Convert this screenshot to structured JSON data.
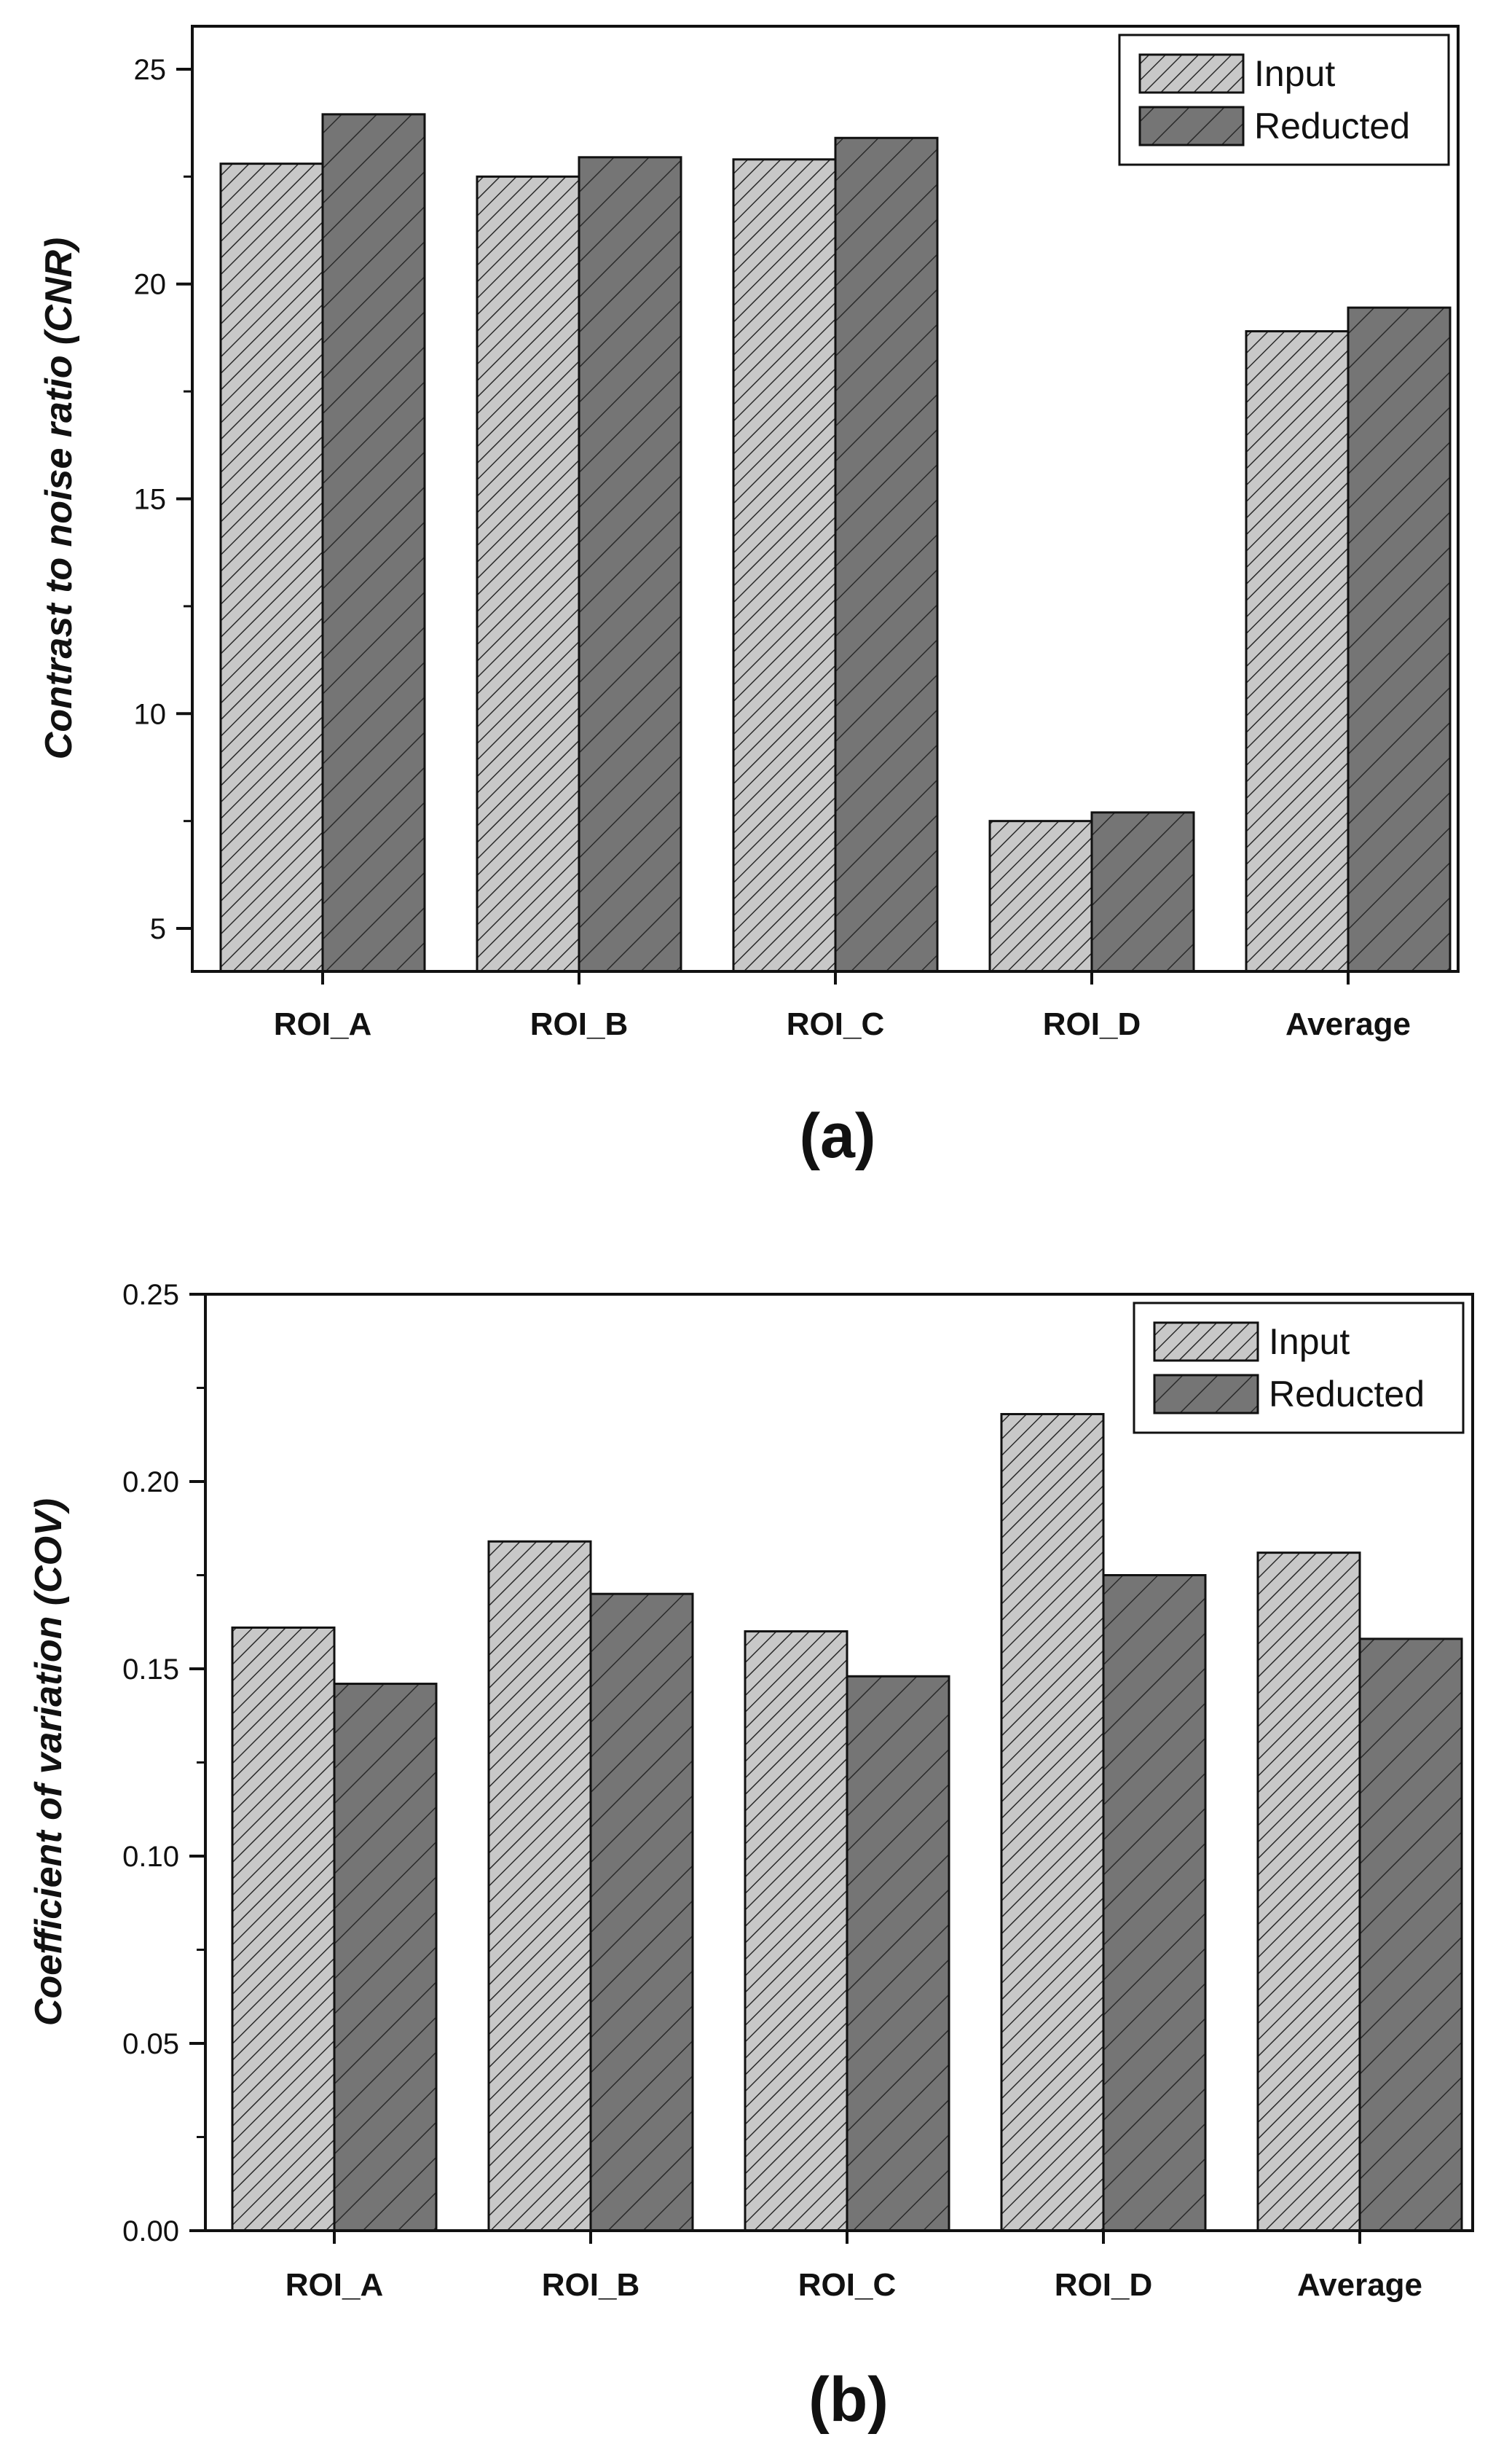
{
  "colors": {
    "input_fill": "#c8c8c8",
    "reducted_fill": "#757575",
    "hatch": "#2a2a2a",
    "axis": "#111111"
  },
  "chart_data": [
    {
      "type": "bar",
      "panel_label": "(a)",
      "title": "",
      "xlabel": "",
      "ylabel": "Contrast to noise ratio (CNR)",
      "categories": [
        "ROI_A",
        "ROI_B",
        "ROI_C",
        "ROI_D",
        "Average"
      ],
      "series": [
        {
          "name": "Input",
          "values": [
            22.8,
            22.5,
            22.9,
            7.5,
            18.9
          ]
        },
        {
          "name": "Reducted",
          "values": [
            23.95,
            22.95,
            23.4,
            7.7,
            19.45
          ]
        }
      ],
      "ylim": [
        4,
        26
      ],
      "yticks": [
        5,
        10,
        15,
        20,
        25
      ],
      "ytick_labels": [
        "5",
        "10",
        "15",
        "20",
        "25"
      ],
      "legend": "top-right",
      "grid": false
    },
    {
      "type": "bar",
      "panel_label": "(b)",
      "title": "",
      "xlabel": "",
      "ylabel": "Coefficient of variation (COV)",
      "categories": [
        "ROI_A",
        "ROI_B",
        "ROI_C",
        "ROI_D",
        "Average"
      ],
      "series": [
        {
          "name": "Input",
          "values": [
            0.161,
            0.184,
            0.16,
            0.218,
            0.181
          ]
        },
        {
          "name": "Reducted",
          "values": [
            0.146,
            0.17,
            0.148,
            0.175,
            0.158
          ]
        }
      ],
      "ylim": [
        0,
        0.25
      ],
      "yticks": [
        0.0,
        0.05,
        0.1,
        0.15,
        0.2,
        0.25
      ],
      "ytick_labels": [
        "0.00",
        "0.05",
        "0.10",
        "0.15",
        "0.20",
        "0.25"
      ],
      "legend": "top-right",
      "grid": false
    }
  ]
}
